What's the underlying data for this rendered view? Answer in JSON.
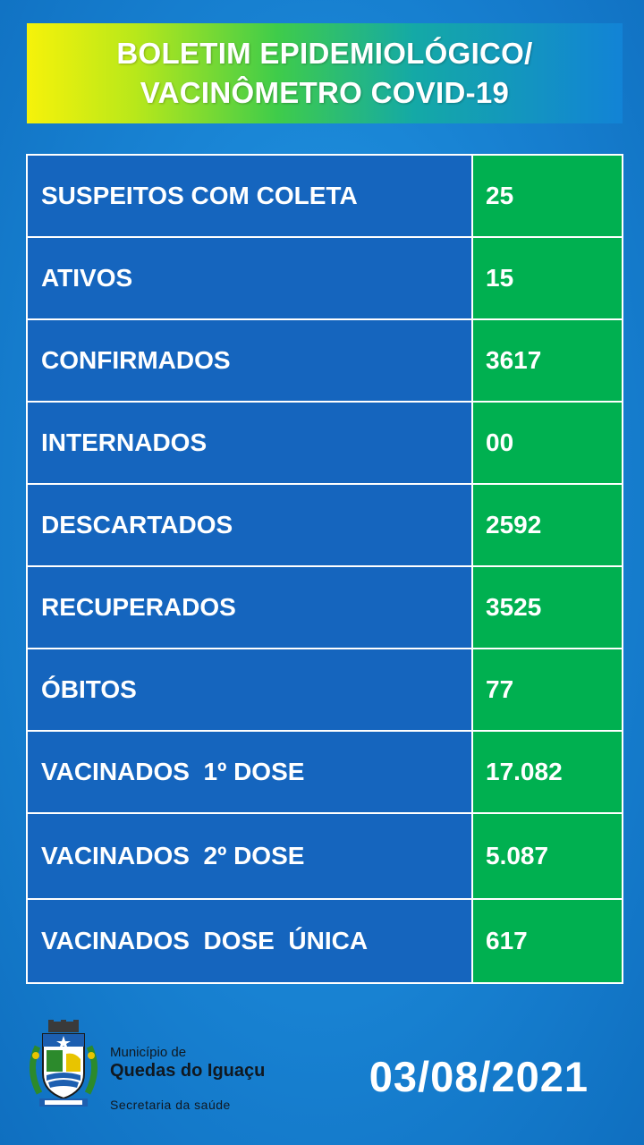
{
  "header": {
    "title_line1": "BOLETIM EPIDEMIOLÓGICO/",
    "title_line2": "VACINÔMETRO COVID-19"
  },
  "rows": [
    {
      "label": "SUSPEITOS COM COLETA",
      "value": "25"
    },
    {
      "label": "ATIVOS",
      "value": "15"
    },
    {
      "label": "CONFIRMADOS",
      "value": "3617"
    },
    {
      "label": "INTERNADOS",
      "value": "00"
    },
    {
      "label": "DESCARTADOS",
      "value": "2592"
    },
    {
      "label": "RECUPERADOS",
      "value": "3525"
    },
    {
      "label": "ÓBITOS",
      "value": "77"
    },
    {
      "label": "VACINADOS  1º DOSE",
      "value": "17.082"
    },
    {
      "label": "VACINADOS  2º DOSE",
      "value": "5.087"
    },
    {
      "label": "VACINADOS  DOSE  ÚNICA",
      "value": "617"
    }
  ],
  "footer": {
    "org_line1": "Município de",
    "org_line2": "Quedas do Iguaçu",
    "org_line3": "Secretaria da saúde",
    "crest_icon": "municipal-crest-icon",
    "date": "03/08/2021"
  },
  "colors": {
    "label_cell": "#1565be",
    "value_cell": "#00b050",
    "background": "#1a86d6"
  }
}
